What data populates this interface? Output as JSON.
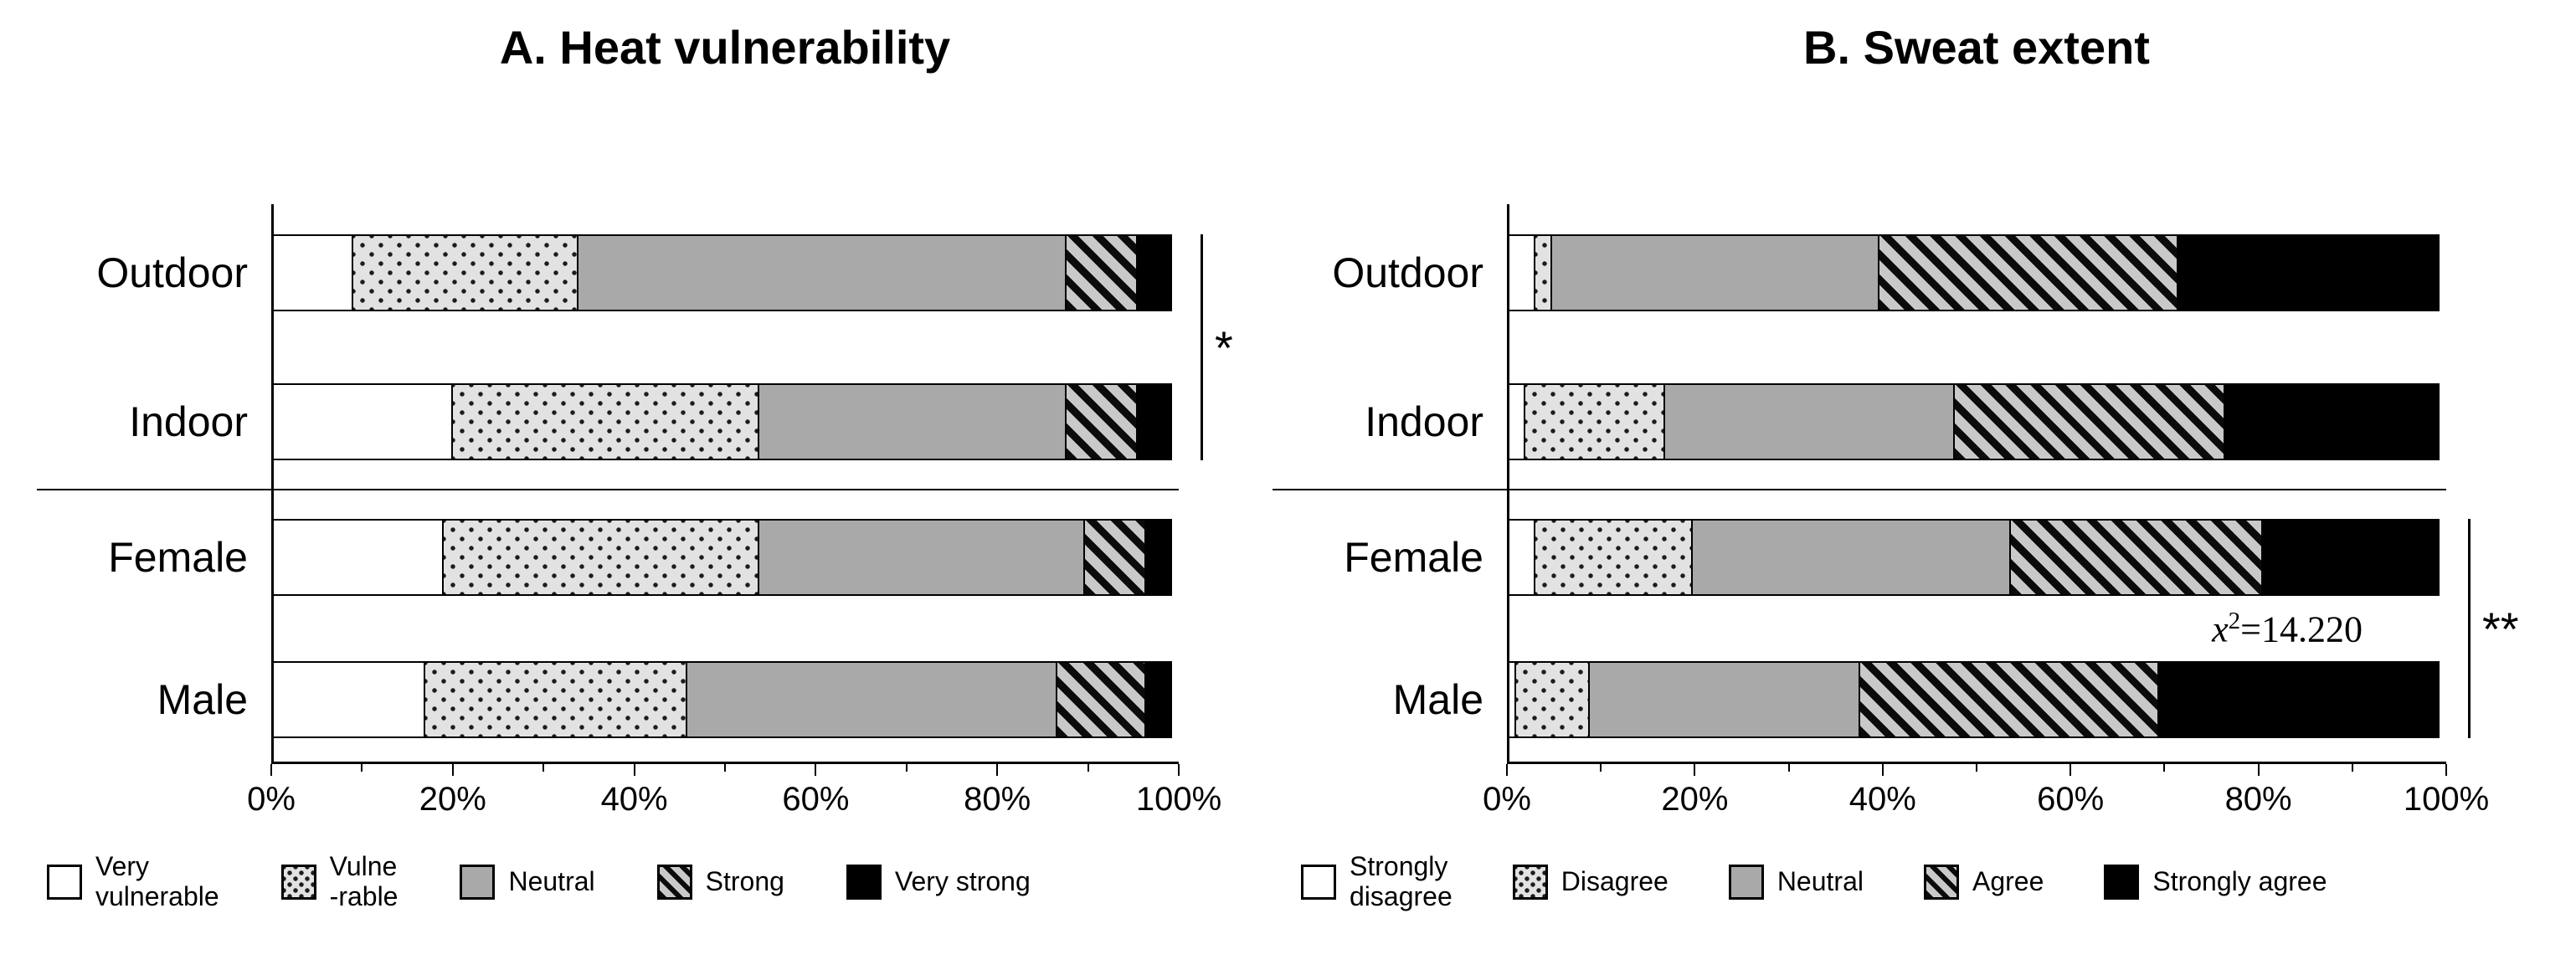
{
  "figure": {
    "panels": [
      {
        "title": "A. Heat vulnerability",
        "x_ticks": [
          "0%",
          "20%",
          "40%",
          "60%",
          "80%",
          "100%"
        ],
        "legend": [
          {
            "label": "Very\nvulnerable",
            "pattern": "white"
          },
          {
            "label": "Vulne\n-rable",
            "pattern": "dots"
          },
          {
            "label": "Neutral",
            "pattern": "gray"
          },
          {
            "label": "Strong",
            "pattern": "hatch"
          },
          {
            "label": "Very strong",
            "pattern": "black"
          }
        ],
        "significance": {
          "text": "*",
          "rows": [
            "Outdoor",
            "Indoor"
          ]
        }
      },
      {
        "title": "B. Sweat extent",
        "x_ticks": [
          "0%",
          "20%",
          "40%",
          "60%",
          "80%",
          "100%"
        ],
        "legend": [
          {
            "label": "Strongly\ndisagree",
            "pattern": "white"
          },
          {
            "label": "Disagree",
            "pattern": "dots"
          },
          {
            "label": "Neutral",
            "pattern": "gray"
          },
          {
            "label": "Agree",
            "pattern": "hatch"
          },
          {
            "label": "Strongly agree",
            "pattern": "black"
          }
        ],
        "significance": {
          "text": "**",
          "rows": [
            "Female",
            "Male"
          ]
        },
        "annotation": {
          "var": "x",
          "sup": "2",
          "rest": "=14.220"
        }
      }
    ],
    "colors": {
      "neutral_gray": "#a9a9a9",
      "dotted_background": "#e2e2e2",
      "hatch_background": "#c9c9c9",
      "black": "#000000",
      "white": "#ffffff"
    }
  },
  "chart_data": [
    {
      "type": "bar",
      "stacked": true,
      "orientation": "horizontal",
      "title": "A. Heat vulnerability",
      "categories": [
        "Outdoor",
        "Indoor",
        "Female",
        "Male"
      ],
      "unit": "%",
      "xlim": [
        0,
        100
      ],
      "x_ticks": [
        "0%",
        "20%",
        "40%",
        "60%",
        "80%",
        "100%"
      ],
      "legend_position": "bottom",
      "grid": false,
      "series": [
        {
          "name": "Very vulnerable",
          "pattern": "white",
          "values": [
            9,
            20,
            19,
            17
          ]
        },
        {
          "name": "Vulnerable",
          "pattern": "dots",
          "values": [
            25,
            34,
            35,
            29
          ]
        },
        {
          "name": "Neutral",
          "pattern": "gray",
          "values": [
            54,
            34,
            36,
            41
          ]
        },
        {
          "name": "Strong",
          "pattern": "hatch",
          "values": [
            8,
            8,
            7,
            10
          ]
        },
        {
          "name": "Very strong",
          "pattern": "black",
          "values": [
            4,
            4,
            3,
            3
          ]
        }
      ],
      "annotations": [
        {
          "text": "*",
          "type": "significance-bracket",
          "between_rows": [
            "Outdoor",
            "Indoor"
          ]
        }
      ]
    },
    {
      "type": "bar",
      "stacked": true,
      "orientation": "horizontal",
      "title": "B. Sweat extent",
      "categories": [
        "Outdoor",
        "Indoor",
        "Female",
        "Male"
      ],
      "unit": "%",
      "xlim": [
        0,
        100
      ],
      "x_ticks": [
        "0%",
        "20%",
        "40%",
        "60%",
        "80%",
        "100%"
      ],
      "legend_position": "bottom",
      "grid": false,
      "series": [
        {
          "name": "Strongly disagree",
          "pattern": "white",
          "values": [
            3,
            2,
            3,
            1
          ]
        },
        {
          "name": "Disagree",
          "pattern": "dots",
          "values": [
            2,
            15,
            17,
            8
          ]
        },
        {
          "name": "Neutral",
          "pattern": "gray",
          "values": [
            35,
            31,
            34,
            29
          ]
        },
        {
          "name": "Agree",
          "pattern": "hatch",
          "values": [
            32,
            29,
            27,
            32
          ]
        },
        {
          "name": "Strongly agree",
          "pattern": "black",
          "values": [
            28,
            23,
            19,
            30
          ]
        }
      ],
      "annotations": [
        {
          "text": "**",
          "type": "significance-bracket",
          "between_rows": [
            "Female",
            "Male"
          ]
        },
        {
          "text": "x²=14.220",
          "type": "chi-square-statistic",
          "near_row": "Male"
        }
      ]
    }
  ]
}
